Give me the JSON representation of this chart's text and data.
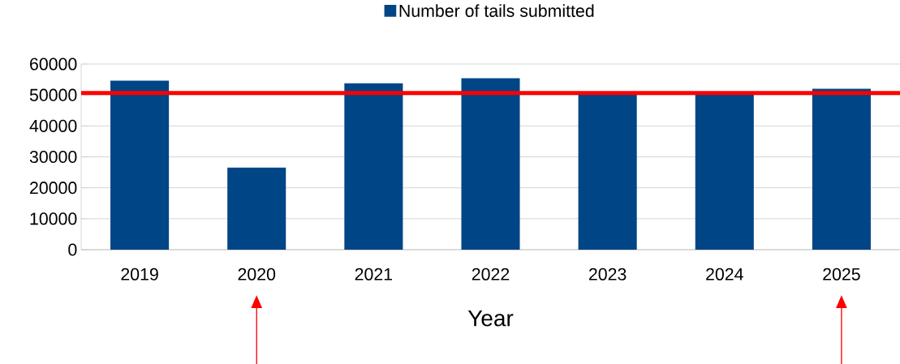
{
  "chart_data": {
    "type": "bar",
    "xlabel": "Year",
    "categories": [
      "2019",
      "2020",
      "2021",
      "2022",
      "2023",
      "2024",
      "2025"
    ],
    "series": [
      {
        "name": "Number of tails submitted",
        "color": "#004586",
        "values": [
          54600,
          26500,
          53800,
          55400,
          50600,
          50600,
          52000
        ]
      }
    ],
    "ylim": [
      0,
      60000
    ],
    "yticks": [
      0,
      10000,
      20000,
      30000,
      40000,
      50000,
      60000
    ],
    "ref_lines": [
      {
        "axis": "y",
        "value": 50600,
        "color": "#ff0000"
      }
    ],
    "grid": "y",
    "legend": "top"
  }
}
